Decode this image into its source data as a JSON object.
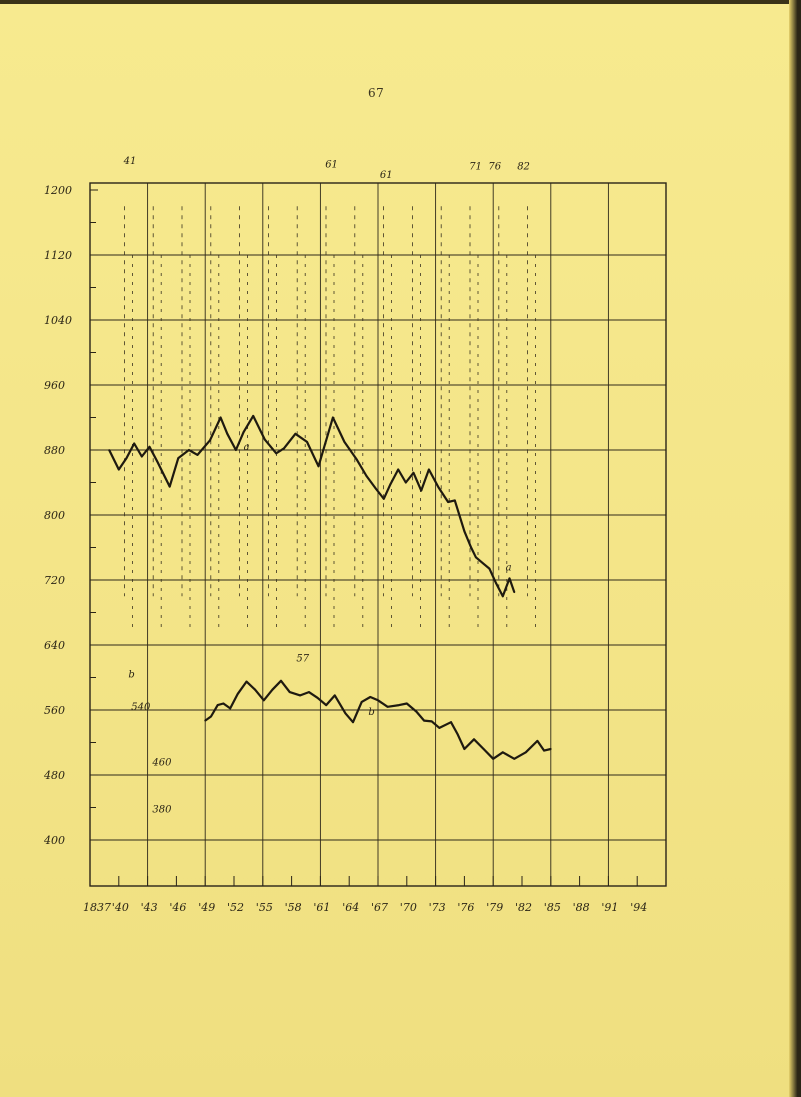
{
  "page": {
    "number": "67"
  },
  "chart_data": {
    "type": "line",
    "title": "",
    "xlabel": "",
    "ylabel": "",
    "x_tick_labels": [
      "1837",
      "'40",
      "'43",
      "'46",
      "'49",
      "'52",
      "'55",
      "'58",
      "'61",
      "'64",
      "'67",
      "'70",
      "'73",
      "'76",
      "'79",
      "'82",
      "'85",
      "'88",
      "'91",
      "'94"
    ],
    "y_tick_labels": [
      "1200",
      "1120",
      "1040",
      "960",
      "880",
      "800",
      "720",
      "640",
      "560",
      "480",
      "400"
    ],
    "ylim": [
      400,
      1240
    ],
    "xlim": [
      1837,
      1897
    ],
    "grid": true,
    "series": [
      {
        "style": "solid",
        "points": [
          [
            1839.0,
            880
          ],
          [
            1840.0,
            856
          ],
          [
            1840.8,
            870
          ],
          [
            1841.6,
            888
          ],
          [
            1842.4,
            872
          ],
          [
            1843.2,
            884
          ],
          [
            1844.0,
            866
          ],
          [
            1845.3,
            835
          ],
          [
            1846.2,
            870
          ],
          [
            1847.3,
            880
          ],
          [
            1848.2,
            874
          ],
          [
            1849.5,
            892
          ],
          [
            1850.6,
            920
          ],
          [
            1851.3,
            900
          ],
          [
            1852.2,
            880
          ],
          [
            1853.0,
            902
          ],
          [
            1854.0,
            922
          ],
          [
            1855.2,
            893
          ],
          [
            1856.4,
            876
          ],
          [
            1857.2,
            882
          ],
          [
            1858.4,
            900
          ],
          [
            1859.6,
            890
          ],
          [
            1860.8,
            860
          ],
          [
            1862.3,
            920
          ],
          [
            1863.5,
            890
          ],
          [
            1864.8,
            868
          ],
          [
            1865.8,
            848
          ],
          [
            1866.8,
            832
          ],
          [
            1867.6,
            820
          ],
          [
            1868.3,
            838
          ],
          [
            1869.1,
            856
          ],
          [
            1869.9,
            840
          ],
          [
            1870.7,
            852
          ],
          [
            1871.5,
            830
          ],
          [
            1872.3,
            856
          ],
          [
            1873.3,
            834
          ],
          [
            1874.3,
            816
          ],
          [
            1875.0,
            818
          ],
          [
            1876.0,
            780
          ],
          [
            1876.7,
            760
          ],
          [
            1877.2,
            748
          ],
          [
            1878.0,
            740
          ],
          [
            1878.6,
            734
          ],
          [
            1879.3,
            716
          ],
          [
            1880.0,
            700
          ],
          [
            1880.7,
            722
          ],
          [
            1881.2,
            705
          ]
        ]
      },
      {
        "style": "solid",
        "points": [
          [
            1849.0,
            547
          ],
          [
            1849.6,
            552
          ],
          [
            1850.3,
            566
          ],
          [
            1850.9,
            568
          ],
          [
            1851.6,
            562
          ],
          [
            1852.4,
            580
          ],
          [
            1853.3,
            595
          ],
          [
            1854.2,
            585
          ],
          [
            1855.1,
            572
          ],
          [
            1856.0,
            585
          ],
          [
            1856.9,
            596
          ],
          [
            1857.8,
            582
          ],
          [
            1858.9,
            578
          ],
          [
            1859.8,
            582
          ],
          [
            1860.7,
            575
          ],
          [
            1861.6,
            566
          ],
          [
            1862.5,
            578
          ],
          [
            1863.6,
            556
          ],
          [
            1864.4,
            545
          ],
          [
            1865.3,
            570
          ],
          [
            1866.2,
            576
          ],
          [
            1867.0,
            572
          ],
          [
            1868.0,
            564
          ],
          [
            1869.2,
            566
          ],
          [
            1870.0,
            568
          ],
          [
            1871.0,
            558
          ],
          [
            1871.8,
            547
          ],
          [
            1872.6,
            546
          ],
          [
            1873.4,
            538
          ],
          [
            1874.6,
            545
          ],
          [
            1875.3,
            530
          ],
          [
            1876.0,
            512
          ],
          [
            1877.0,
            524
          ],
          [
            1878.0,
            512
          ],
          [
            1879.0,
            500
          ],
          [
            1880.0,
            508
          ],
          [
            1881.2,
            500
          ],
          [
            1882.4,
            508
          ],
          [
            1883.6,
            522
          ],
          [
            1884.3,
            510
          ],
          [
            1885.0,
            512
          ]
        ]
      }
    ],
    "annotations": [
      "41",
      "61",
      "61",
      "71",
      "76",
      "82",
      "a",
      "a",
      "b",
      "b",
      "540",
      "57",
      "460",
      "380"
    ]
  }
}
